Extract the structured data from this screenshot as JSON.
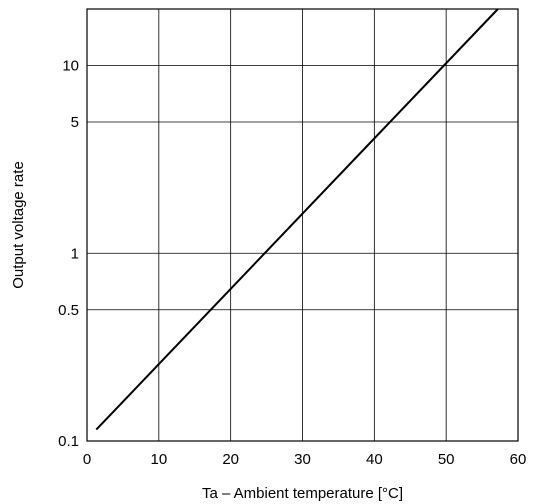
{
  "chart_data": {
    "type": "line",
    "xlabel": "Ta – Ambient temperature [°C]",
    "ylabel": "Output voltage rate",
    "xlim": [
      0,
      60
    ],
    "ylim": [
      0.1,
      20
    ],
    "y_scale": "log",
    "grid": true,
    "x_ticks": [
      0,
      10,
      20,
      30,
      40,
      50,
      60
    ],
    "x_tick_labels": [
      "0",
      "10",
      "20",
      "30",
      "40",
      "50",
      "60"
    ],
    "y_ticks": [
      0.1,
      0.5,
      1,
      5,
      10
    ],
    "y_tick_labels": [
      "0.1",
      "0.5",
      "1",
      "5",
      "10"
    ],
    "series": [
      {
        "x": [
          1.3,
          57.2
        ],
        "y": [
          0.115,
          20
        ],
        "color": "#000000"
      }
    ]
  }
}
